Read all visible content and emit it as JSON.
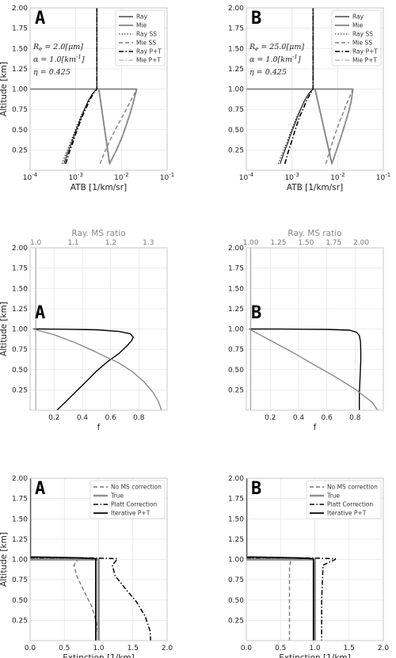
{
  "chart_data": [
    {
      "id": "atb-a",
      "type": "line",
      "panel_label": "A",
      "xscale": "log",
      "xlim": [
        0.0001,
        0.1
      ],
      "ylim": [
        0.0,
        2.0
      ],
      "xticks": [
        0.0001,
        0.001,
        0.01,
        0.1
      ],
      "xticklabels": [
        "10^-4",
        "10^-3",
        "10^-2",
        "10^-1"
      ],
      "yticks": [
        0.25,
        0.5,
        0.75,
        1.0,
        1.25,
        1.5,
        1.75,
        2.0
      ],
      "yticklabels": [
        "0.25",
        "0.50",
        "0.75",
        "1.00",
        "1.25",
        "1.50",
        "1.75",
        "2.00"
      ],
      "xlabel": "ATB [1/km/sr]",
      "ylabel": "Altitude [km]",
      "legend_position": "top-right",
      "annotations": [
        "R_e = 2.0[μm]",
        "α = 1.0[km^-1]",
        "η = 0.425"
      ],
      "series": [
        {
          "name": "Ray",
          "style": "solid",
          "color": "#222222",
          "width": 1.2,
          "x": [
            0.00055,
            0.00065,
            0.0008,
            0.00095,
            0.00115,
            0.00135,
            0.0016,
            0.0019,
            0.0023,
            0.00265,
            0.0029,
            0.0029,
            0.0029
          ],
          "y": [
            0.08,
            0.2,
            0.33,
            0.45,
            0.57,
            0.67,
            0.77,
            0.86,
            0.94,
            0.98,
            1.0,
            1.02,
            2.0
          ]
        },
        {
          "name": "Mie",
          "style": "solid",
          "color": "#808080",
          "width": 1.8,
          "x": [
            0.0001,
            0.0032,
            0.0055,
            0.0078,
            0.0105,
            0.013,
            0.0155,
            0.018,
            0.0205,
            0.0215,
            0.0215,
            0.0001
          ],
          "y": [
            1.0,
            1.0,
            0.08,
            0.25,
            0.42,
            0.57,
            0.7,
            0.83,
            0.95,
            1.0,
            1.0,
            1.0
          ]
        },
        {
          "name": "Ray SS",
          "style": "dotted",
          "color": "#111111",
          "width": 1.0,
          "x": [
            0.0005,
            0.0006,
            0.00075,
            0.0009,
            0.0011,
            0.0013,
            0.0016,
            0.0019,
            0.0023,
            0.0029,
            0.0029,
            0.0029
          ],
          "y": [
            0.08,
            0.2,
            0.33,
            0.45,
            0.57,
            0.67,
            0.77,
            0.86,
            0.94,
            1.0,
            1.02,
            2.0
          ]
        },
        {
          "name": "Mie SS",
          "style": "dashed",
          "color": "#808080",
          "width": 1.4,
          "x": [
            0.0034,
            0.0045,
            0.0062,
            0.0085,
            0.0115,
            0.0145,
            0.0175,
            0.0205,
            0.0215
          ],
          "y": [
            0.08,
            0.25,
            0.42,
            0.57,
            0.7,
            0.81,
            0.9,
            0.97,
            1.0
          ]
        },
        {
          "name": "Ray P+T",
          "style": "dashdot",
          "color": "#000000",
          "width": 1.6,
          "x": [
            0.0006,
            0.0007,
            0.00085,
            0.001,
            0.0012,
            0.0014,
            0.0017,
            0.002,
            0.0024,
            0.0029,
            0.0029,
            0.0029
          ],
          "y": [
            0.08,
            0.2,
            0.33,
            0.45,
            0.57,
            0.67,
            0.77,
            0.86,
            0.94,
            1.0,
            1.02,
            2.0
          ]
        },
        {
          "name": "Mie P+T",
          "style": "dashdot",
          "color": "#999999",
          "width": 1.0,
          "x": [
            0.0055,
            0.0078,
            0.0105,
            0.013,
            0.0155,
            0.018,
            0.0205,
            0.0215
          ],
          "y": [
            0.08,
            0.25,
            0.42,
            0.57,
            0.7,
            0.83,
            0.95,
            1.0
          ]
        }
      ]
    },
    {
      "id": "atb-b",
      "type": "line",
      "panel_label": "B",
      "xscale": "log",
      "xlim": [
        0.0001,
        0.1
      ],
      "ylim": [
        0.0,
        2.0
      ],
      "xticks": [
        0.0001,
        0.001,
        0.01,
        0.1
      ],
      "xticklabels": [
        "10^-4",
        "10^-3",
        "10^-2",
        "10^-1"
      ],
      "yticks": [
        0.25,
        0.5,
        0.75,
        1.0,
        1.25,
        1.5,
        1.75,
        2.0
      ],
      "yticklabels": [
        "0.25",
        "0.50",
        "0.75",
        "1.00",
        "1.25",
        "1.50",
        "1.75",
        "2.00"
      ],
      "xlabel": "ATB [1/km/sr]",
      "ylabel": "",
      "legend_position": "top-right",
      "annotations": [
        "R_e = 25.0[μm]",
        "α = 1.0[km^-1]",
        "η = 0.425"
      ],
      "series": [
        {
          "name": "Ray",
          "style": "solid",
          "color": "#222222",
          "width": 1.2,
          "x": [
            0.00055,
            0.00065,
            0.0008,
            0.00095,
            0.00115,
            0.00135,
            0.0016,
            0.0019,
            0.0023,
            0.00265,
            0.0029,
            0.0029,
            0.0029
          ],
          "y": [
            0.08,
            0.2,
            0.33,
            0.45,
            0.57,
            0.67,
            0.77,
            0.86,
            0.94,
            0.98,
            1.0,
            1.02,
            2.0
          ]
        },
        {
          "name": "Mie",
          "style": "solid",
          "color": "#808080",
          "width": 1.8,
          "x": [
            0.0001,
            0.0032,
            0.0075,
            0.0095,
            0.012,
            0.0145,
            0.017,
            0.0195,
            0.021,
            0.0215,
            0.0215,
            0.0001
          ],
          "y": [
            1.0,
            1.0,
            0.08,
            0.25,
            0.42,
            0.57,
            0.7,
            0.83,
            0.95,
            1.0,
            1.0,
            1.0
          ]
        },
        {
          "name": "Ray SS",
          "style": "dotted",
          "color": "#111111",
          "width": 1.0,
          "x": [
            0.0005,
            0.0006,
            0.00075,
            0.0009,
            0.0011,
            0.0013,
            0.0016,
            0.0019,
            0.0023,
            0.0029,
            0.0029,
            0.0029
          ],
          "y": [
            0.08,
            0.2,
            0.33,
            0.45,
            0.57,
            0.67,
            0.77,
            0.86,
            0.94,
            1.0,
            1.02,
            2.0
          ]
        },
        {
          "name": "Mie SS",
          "style": "dashed",
          "color": "#808080",
          "width": 1.4,
          "x": [
            0.0055,
            0.0068,
            0.0085,
            0.0105,
            0.013,
            0.0155,
            0.018,
            0.0205,
            0.0215
          ],
          "y": [
            0.08,
            0.25,
            0.42,
            0.57,
            0.7,
            0.81,
            0.9,
            0.97,
            1.0
          ]
        },
        {
          "name": "Ray P+T",
          "style": "dashdot",
          "color": "#000000",
          "width": 1.6,
          "x": [
            0.0007,
            0.0008,
            0.00095,
            0.0011,
            0.0013,
            0.0015,
            0.0018,
            0.0021,
            0.0025,
            0.0029,
            0.0029,
            0.0029
          ],
          "y": [
            0.08,
            0.2,
            0.33,
            0.45,
            0.57,
            0.67,
            0.77,
            0.86,
            0.94,
            1.0,
            1.02,
            2.0
          ]
        },
        {
          "name": "Mie P+T",
          "style": "dashdot",
          "color": "#999999",
          "width": 1.0,
          "x": [
            0.0075,
            0.0095,
            0.012,
            0.0145,
            0.017,
            0.0195,
            0.021,
            0.0215
          ],
          "y": [
            0.08,
            0.25,
            0.42,
            0.57,
            0.7,
            0.83,
            0.95,
            1.0
          ]
        }
      ]
    },
    {
      "id": "f-a",
      "type": "line",
      "panel_label": "A",
      "xscale": "linear",
      "xlim": [
        0.03,
        1.0
      ],
      "ylim": [
        0.0,
        2.0
      ],
      "xticks": [
        0.2,
        0.4,
        0.6,
        0.8
      ],
      "xticklabels": [
        "0.2",
        "0.4",
        "0.6",
        "0.8"
      ],
      "yticks": [
        0.25,
        0.5,
        0.75,
        1.0,
        1.25,
        1.5,
        1.75,
        2.0
      ],
      "yticklabels": [
        "0.25",
        "0.50",
        "0.75",
        "1.00",
        "1.25",
        "1.50",
        "1.75",
        "2.00"
      ],
      "xlabel": "f",
      "ylabel": "Altitude [km]",
      "x2label": "Ray. MS ratio",
      "x2lim": [
        0.985,
        1.35
      ],
      "x2ticks": [
        1.0,
        1.1,
        1.2,
        1.3
      ],
      "x2ticklabels": [
        "1.0",
        "1.1",
        "1.2",
        "1.3"
      ],
      "series": [
        {
          "name": "",
          "axis": "bottom",
          "style": "solid",
          "color": "#000000",
          "width": 1.4,
          "x": [
            0.22,
            0.28,
            0.35,
            0.42,
            0.5,
            0.58,
            0.66,
            0.72,
            0.75,
            0.76,
            0.74,
            0.66,
            0.5,
            0.28,
            0.1,
            0.05
          ],
          "y": [
            0.0,
            0.1,
            0.22,
            0.34,
            0.48,
            0.6,
            0.7,
            0.8,
            0.86,
            0.9,
            0.94,
            0.97,
            0.99,
            0.997,
            1.0,
            1.0
          ]
        },
        {
          "name": "",
          "axis": "bottom",
          "style": "solid",
          "color": "#8a8a8a",
          "width": 1.4,
          "x": [
            0.05,
            0.2,
            0.35,
            0.48,
            0.55,
            0.65,
            0.75,
            0.83,
            0.9,
            0.94,
            0.96
          ],
          "y": [
            1.0,
            0.93,
            0.83,
            0.73,
            0.67,
            0.59,
            0.48,
            0.36,
            0.22,
            0.1,
            0.0
          ]
        },
        {
          "name": "",
          "axis": "top",
          "style": "solid",
          "color": "#999999",
          "width": 1.0,
          "x": [
            1.0,
            1.0
          ],
          "y": [
            0.0,
            2.0
          ]
        }
      ]
    },
    {
      "id": "f-b",
      "type": "line",
      "panel_label": "B",
      "xscale": "linear",
      "xlim": [
        0.03,
        1.0
      ],
      "ylim": [
        0.0,
        2.0
      ],
      "xticks": [
        0.2,
        0.4,
        0.6,
        0.8
      ],
      "xticklabels": [
        "0.2",
        "0.4",
        "0.6",
        "0.8"
      ],
      "yticks": [
        0.25,
        0.5,
        0.75,
        1.0,
        1.25,
        1.5,
        1.75,
        2.0
      ],
      "yticklabels": [
        "0.25",
        "0.50",
        "0.75",
        "1.00",
        "1.25",
        "1.50",
        "1.75",
        "2.00"
      ],
      "xlabel": "f",
      "ylabel": "",
      "x2label": "Ray. MS ratio",
      "x2lim": [
        0.96,
        2.2
      ],
      "x2ticks": [
        1.0,
        1.25,
        1.5,
        1.75,
        2.0
      ],
      "x2ticklabels": [
        "1.00",
        "1.25",
        "1.50",
        "1.75",
        "2.00"
      ],
      "series": [
        {
          "name": "",
          "axis": "bottom",
          "style": "solid",
          "color": "#000000",
          "width": 1.4,
          "x": [
            0.83,
            0.83,
            0.835,
            0.84,
            0.84,
            0.838,
            0.83,
            0.81,
            0.76,
            0.6,
            0.3,
            0.05
          ],
          "y": [
            0.0,
            0.2,
            0.4,
            0.6,
            0.75,
            0.85,
            0.92,
            0.96,
            0.985,
            0.995,
            0.999,
            1.0
          ]
        },
        {
          "name": "",
          "axis": "bottom",
          "style": "solid",
          "color": "#8a8a8a",
          "width": 1.4,
          "x": [
            0.05,
            0.2,
            0.35,
            0.5,
            0.65,
            0.8,
            0.92,
            0.96
          ],
          "y": [
            1.0,
            0.86,
            0.72,
            0.57,
            0.42,
            0.26,
            0.1,
            0.0
          ]
        },
        {
          "name": "",
          "axis": "top",
          "style": "solid",
          "color": "#999999",
          "width": 1.0,
          "x": [
            1.0,
            1.0
          ],
          "y": [
            0.0,
            2.0
          ]
        }
      ]
    },
    {
      "id": "ext-a",
      "type": "line",
      "panel_label": "A",
      "xscale": "linear",
      "xlim": [
        0.0,
        2.0
      ],
      "ylim": [
        0.0,
        2.0
      ],
      "xticks": [
        0.0,
        0.5,
        1.0,
        1.5,
        2.0
      ],
      "xticklabels": [
        "0.0",
        "0.5",
        "1.0",
        "1.5",
        "2.0"
      ],
      "yticks": [
        0.25,
        0.5,
        0.75,
        1.0,
        1.25,
        1.5,
        1.75,
        2.0
      ],
      "yticklabels": [
        "0.25",
        "0.50",
        "0.75",
        "1.00",
        "1.25",
        "1.50",
        "1.75",
        "2.00"
      ],
      "xlabel": "Extinction [1/km]",
      "ylabel": "Altitude [km]",
      "legend_position": "top-right",
      "series": [
        {
          "name": "No MS correction",
          "style": "dashed",
          "color": "#777777",
          "width": 1.4,
          "x": [
            0.0,
            0.0,
            0.4,
            0.7,
            0.7,
            0.64,
            0.68,
            0.78,
            0.9,
            0.97,
            0.99,
            0.99
          ],
          "y": [
            2.0,
            1.02,
            1.02,
            1.01,
            1.0,
            0.93,
            0.8,
            0.62,
            0.42,
            0.22,
            0.1,
            0.0
          ]
        },
        {
          "name": "True",
          "style": "solid",
          "color": "#909090",
          "width": 3.0,
          "x": [
            0.0,
            0.0,
            1.0,
            1.0,
            1.0
          ],
          "y": [
            2.0,
            1.0,
            1.0,
            1.0,
            0.0
          ]
        },
        {
          "name": "Platt Correction",
          "style": "dashdot",
          "color": "#000000",
          "width": 1.5,
          "x": [
            0.0,
            0.0,
            0.8,
            1.27,
            1.27,
            1.2,
            1.24,
            1.38,
            1.55,
            1.68,
            1.75,
            1.76
          ],
          "y": [
            2.0,
            1.02,
            1.02,
            1.01,
            1.0,
            0.93,
            0.8,
            0.65,
            0.48,
            0.3,
            0.12,
            0.0
          ]
        },
        {
          "name": "Iterative P+T",
          "style": "solid",
          "color": "#000000",
          "width": 1.8,
          "x": [
            0.0,
            0.0,
            0.7,
            0.95,
            0.96,
            0.96,
            0.96
          ],
          "y": [
            2.0,
            1.03,
            1.02,
            1.01,
            1.0,
            0.5,
            0.0
          ]
        }
      ]
    },
    {
      "id": "ext-b",
      "type": "line",
      "panel_label": "B",
      "xscale": "linear",
      "xlim": [
        0.0,
        2.0
      ],
      "ylim": [
        0.0,
        2.0
      ],
      "xticks": [
        0.0,
        0.5,
        1.0,
        1.5,
        2.0
      ],
      "xticklabels": [
        "0.0",
        "0.5",
        "1.0",
        "1.5",
        "2.0"
      ],
      "yticks": [
        0.25,
        0.5,
        0.75,
        1.0,
        1.25,
        1.5,
        1.75,
        2.0
      ],
      "yticklabels": [
        "0.25",
        "0.50",
        "0.75",
        "1.00",
        "1.25",
        "1.50",
        "1.75",
        "2.00"
      ],
      "xlabel": "Extinction [1/km]",
      "ylabel": "",
      "legend_position": "top-right",
      "series": [
        {
          "name": "No MS correction",
          "style": "dashed",
          "color": "#777777",
          "width": 1.4,
          "x": [
            0.0,
            0.0,
            0.4,
            0.65,
            0.65,
            0.63,
            0.63,
            0.63
          ],
          "y": [
            2.0,
            1.02,
            1.02,
            1.01,
            1.0,
            0.9,
            0.4,
            0.0
          ]
        },
        {
          "name": "True",
          "style": "solid",
          "color": "#909090",
          "width": 3.0,
          "x": [
            0.0,
            0.0,
            1.0,
            1.0,
            1.0
          ],
          "y": [
            2.0,
            1.0,
            1.0,
            1.0,
            0.0
          ]
        },
        {
          "name": "Platt Correction",
          "style": "dashdot",
          "color": "#000000",
          "width": 1.5,
          "x": [
            0.0,
            0.0,
            0.8,
            1.3,
            1.3,
            1.12,
            1.1,
            1.1
          ],
          "y": [
            2.0,
            1.02,
            1.02,
            1.01,
            1.0,
            0.93,
            0.5,
            0.0
          ]
        },
        {
          "name": "Iterative P+T",
          "style": "solid",
          "color": "#000000",
          "width": 1.8,
          "x": [
            0.0,
            0.0,
            0.7,
            0.97,
            0.98,
            0.98,
            0.98
          ],
          "y": [
            2.0,
            1.03,
            1.02,
            1.01,
            1.0,
            0.5,
            0.0
          ]
        }
      ]
    }
  ]
}
